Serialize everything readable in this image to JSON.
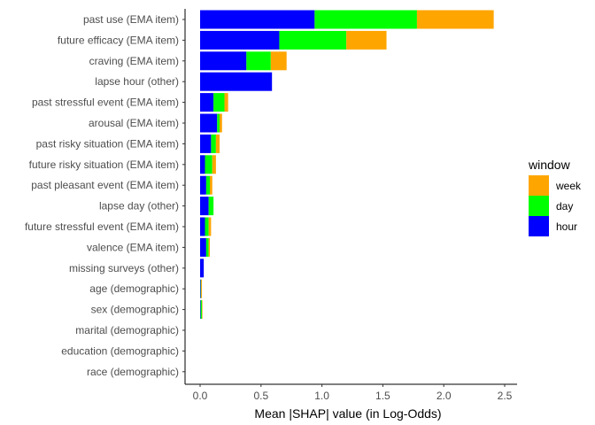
{
  "chart_data": {
    "type": "bar",
    "orientation": "horizontal",
    "stacked": true,
    "title": "",
    "xlabel": "Mean |SHAP| value (in Log-Odds)",
    "ylabel": "",
    "xlim": [
      0,
      2.5
    ],
    "xticks": [
      0.0,
      0.5,
      1.0,
      1.5,
      2.0,
      2.5
    ],
    "xtick_labels": [
      "0.0",
      "0.5",
      "1.0",
      "1.5",
      "2.0",
      "2.5"
    ],
    "grid": false,
    "legend_position": "right",
    "legend_title": "window",
    "categories": [
      "past use (EMA item)",
      "future efficacy (EMA item)",
      "craving (EMA item)",
      "lapse hour (other)",
      "past stressful event (EMA item)",
      "arousal (EMA item)",
      "past risky situation (EMA item)",
      "future risky situation (EMA item)",
      "past pleasant event (EMA item)",
      "lapse day (other)",
      "future stressful event (EMA item)",
      "valence (EMA item)",
      "missing surveys (other)",
      "age (demographic)",
      "sex (demographic)",
      "marital (demographic)",
      "education (demographic)",
      "race (demographic)"
    ],
    "series": [
      {
        "name": "hour",
        "color": "#0000FF",
        "values": [
          0.94,
          0.65,
          0.38,
          0.59,
          0.11,
          0.14,
          0.09,
          0.04,
          0.05,
          0.07,
          0.04,
          0.05,
          0.03,
          0.005,
          0.005,
          0.0,
          0.0,
          0.0
        ]
      },
      {
        "name": "day",
        "color": "#00FF00",
        "values": [
          0.84,
          0.55,
          0.2,
          0.0,
          0.09,
          0.02,
          0.04,
          0.06,
          0.03,
          0.04,
          0.03,
          0.02,
          0.0,
          0.003,
          0.01,
          0.0,
          0.0,
          0.0
        ]
      },
      {
        "name": "week",
        "color": "#FFA500",
        "values": [
          0.63,
          0.33,
          0.13,
          0.0,
          0.03,
          0.02,
          0.03,
          0.03,
          0.02,
          0.0,
          0.02,
          0.01,
          0.0,
          0.007,
          0.003,
          0.0,
          0.0,
          0.0
        ]
      }
    ],
    "legend_order": [
      "week",
      "day",
      "hour"
    ]
  }
}
